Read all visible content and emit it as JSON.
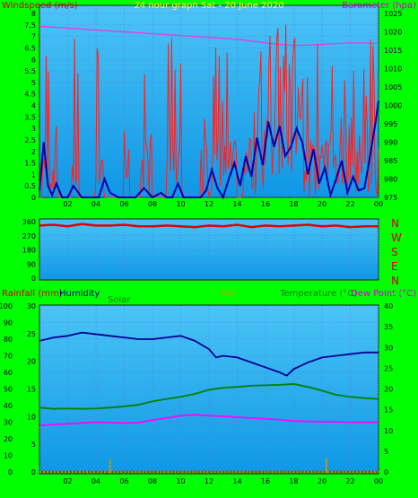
{
  "colors": {
    "frame_bg": "#00ff00",
    "panel_bg": "#1faef2",
    "wind": "#ff2020",
    "gust": "#0000a8",
    "barometer": "#e040e0",
    "direction": "#e00000",
    "humidity": "#000090",
    "solar": "#008000",
    "uv": "#cc9900",
    "temperature": "#008000",
    "dewpoint": "#ff00ff",
    "rain": "#ff3000",
    "title": "#ffff00"
  },
  "chart_data": [
    {
      "type": "line",
      "title": "24 hour graph Sat - 20 June 2020",
      "ylabel": "Windspeed (m/s)",
      "y2label": "Barometer (hpa)",
      "xlim": [
        0,
        24
      ],
      "ylim": [
        0,
        8
      ],
      "y2lim": [
        975,
        1025
      ],
      "x_ticks": [
        "02",
        "04",
        "06",
        "08",
        "10",
        "12",
        "14",
        "16",
        "18",
        "20",
        "22",
        "00"
      ],
      "y_ticks": [
        "0",
        "0.5",
        "1",
        "1.5",
        "2",
        "2.5",
        "3",
        "3.5",
        "4",
        "4.5",
        "5",
        "5.5",
        "6",
        "6.5",
        "7",
        "7.5",
        "8"
      ],
      "y2_ticks": [
        "975",
        "980",
        "985",
        "990",
        "995",
        "1000",
        "1005",
        "1010",
        "1015",
        "1020",
        "1025"
      ],
      "grid": true,
      "series": [
        {
          "name": "Barometer",
          "axis": "right",
          "x": [
            0,
            2,
            4,
            6,
            8,
            10,
            12,
            14,
            15,
            16,
            17,
            18,
            19,
            20,
            21,
            22,
            23,
            24
          ],
          "values": [
            1021.5,
            1021,
            1020.5,
            1020,
            1019.5,
            1019,
            1018.5,
            1018,
            1017.5,
            1017,
            1016.6,
            1016.3,
            1016.4,
            1016.6,
            1016.8,
            1017,
            1017,
            1016.8
          ]
        },
        {
          "name": "Average wind",
          "axis": "left",
          "x": [
            0,
            0.3,
            0.6,
            0.9,
            1.2,
            1.6,
            2,
            2.4,
            3,
            3.4,
            3.8,
            4.2,
            4.6,
            5,
            5.6,
            6.2,
            6.8,
            7.4,
            8,
            8.6,
            9,
            9.4,
            9.8,
            10.2,
            10.6,
            11,
            11.4,
            11.8,
            12.2,
            12.6,
            13,
            13.4,
            13.8,
            14.2,
            14.6,
            15,
            15.4,
            15.8,
            16.2,
            16.6,
            17,
            17.4,
            17.8,
            18.2,
            18.6,
            19,
            19.4,
            19.8,
            20.2,
            20.6,
            21,
            21.4,
            21.8,
            22.2,
            22.6,
            23,
            23.4,
            23.8,
            24
          ],
          "values": [
            0.3,
            2.4,
            0.5,
            0.1,
            0.6,
            0,
            0,
            0.5,
            0,
            0,
            0,
            0,
            0.8,
            0.2,
            0,
            0,
            0,
            0.4,
            0,
            0.2,
            0,
            0,
            0.6,
            0,
            0,
            0,
            0,
            0.3,
            1.2,
            0.4,
            0,
            0.8,
            1.5,
            0.5,
            1.8,
            0.9,
            2.6,
            1.4,
            3.3,
            2.2,
            3.1,
            1.8,
            2.2,
            3,
            2.4,
            1,
            2.1,
            0.6,
            1.3,
            0.1,
            0.8,
            1.6,
            0.2,
            0.9,
            0.3,
            0.4,
            1.8,
            3.3,
            4.2
          ]
        }
      ]
    },
    {
      "type": "scatter",
      "title": "",
      "ylabel": "",
      "xlim": [
        0,
        24
      ],
      "ylim": [
        0,
        360
      ],
      "y_ticks": [
        "0",
        "90",
        "180",
        "270",
        "360"
      ],
      "right_labels": [
        "N",
        "W",
        "S",
        "E",
        "N"
      ],
      "grid": true,
      "series": [
        {
          "name": "Wind direction",
          "x": [
            0,
            1,
            2,
            3,
            4,
            5,
            6,
            7,
            8,
            9,
            10,
            11,
            12,
            13,
            14,
            15,
            16,
            17,
            18,
            19,
            20,
            21,
            22,
            23,
            24
          ],
          "values": [
            335,
            340,
            330,
            345,
            335,
            335,
            340,
            330,
            330,
            335,
            330,
            325,
            335,
            330,
            340,
            325,
            335,
            330,
            335,
            340,
            330,
            335,
            325,
            330,
            330
          ]
        }
      ]
    },
    {
      "type": "line",
      "title": "",
      "labels": {
        "rainfall": "Rainfall (mm)",
        "humidity": "Humidity",
        "solar": "Solar",
        "uv": "UV",
        "temperature": "Temperature (°C)",
        "dewpoint": "Dew Point (°C)"
      },
      "xlim": [
        0,
        24
      ],
      "humidity_ticks": [
        "0",
        "10",
        "20",
        "30",
        "40",
        "50",
        "60",
        "70",
        "80",
        "90",
        "100"
      ],
      "rain_ticks": [
        "0",
        "5",
        "10",
        "15",
        "20",
        "25",
        "30"
      ],
      "temp_ticks": [
        "0",
        "5",
        "10",
        "15",
        "20",
        "25",
        "30",
        "35",
        "40"
      ],
      "x_ticks": [
        "02",
        "04",
        "06",
        "08",
        "10",
        "12",
        "14",
        "16",
        "18",
        "20",
        "22",
        "00"
      ],
      "humidity_range": [
        0,
        100
      ],
      "temp_range": [
        0,
        40
      ],
      "grid": true,
      "series": [
        {
          "name": "Humidity",
          "axis": "humidity",
          "x": [
            0,
            1,
            2,
            3,
            4,
            5,
            6,
            7,
            8,
            9,
            10,
            11,
            12,
            12.5,
            13,
            14,
            15,
            16,
            17,
            17.5,
            18,
            19,
            20,
            21,
            22,
            23,
            24
          ],
          "values": [
            79,
            81,
            82,
            84,
            83,
            82,
            81,
            80,
            80,
            81,
            82,
            79,
            74,
            69,
            70,
            69,
            66,
            63,
            60,
            58,
            62,
            66,
            69,
            70,
            71,
            72,
            72
          ]
        },
        {
          "name": "Temperature",
          "axis": "temp",
          "x": [
            0,
            1,
            2,
            3,
            4,
            5,
            6,
            7,
            8,
            9,
            10,
            11,
            12,
            13,
            14,
            15,
            16,
            17,
            18,
            19,
            20,
            21,
            22,
            23,
            24
          ],
          "values": [
            15.5,
            15.2,
            15.3,
            15.2,
            15.3,
            15.5,
            15.8,
            16.2,
            17.0,
            17.6,
            18.1,
            18.8,
            19.8,
            20.3,
            20.5,
            20.8,
            20.9,
            21.0,
            21.2,
            20.5,
            19.6,
            18.6,
            18.1,
            17.8,
            17.6
          ]
        },
        {
          "name": "Dew Point",
          "axis": "temp",
          "x": [
            0,
            1,
            2,
            3,
            4,
            5,
            6,
            7,
            8,
            9,
            10,
            11,
            12,
            13,
            14,
            15,
            16,
            17,
            18,
            19,
            20,
            21,
            22,
            23,
            24
          ],
          "values": [
            11.2,
            11.4,
            11.6,
            11.8,
            12.0,
            11.9,
            11.8,
            11.9,
            12.5,
            13.0,
            13.6,
            13.8,
            13.6,
            13.4,
            13.2,
            13.0,
            12.8,
            12.6,
            12.3,
            12.2,
            12.1,
            12.1,
            12.0,
            12.0,
            12.0
          ]
        },
        {
          "name": "Rainfall",
          "axis": "rain",
          "x": [
            0,
            24
          ],
          "values": [
            0,
            0
          ]
        },
        {
          "name": "Solar",
          "axis": "humidity",
          "x": [
            0,
            24
          ],
          "values": [
            0,
            0
          ]
        },
        {
          "name": "UV",
          "axis": "humidity",
          "x": [
            0,
            5,
            20.3,
            24
          ],
          "values": [
            0,
            1,
            1,
            0
          ]
        }
      ]
    }
  ]
}
